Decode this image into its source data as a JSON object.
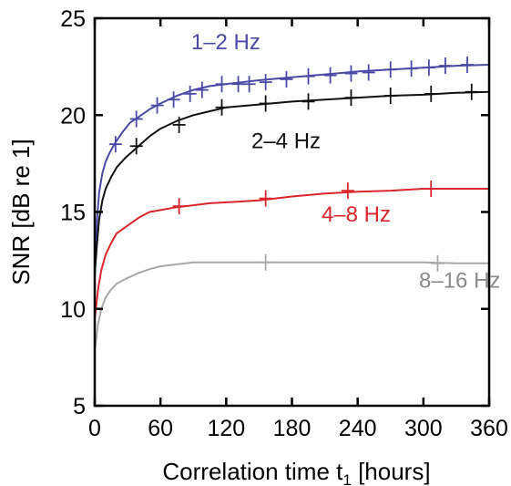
{
  "chart_data": {
    "type": "line",
    "xlabel": "Correlation time t",
    "xlabel_subscript": "1",
    "xlabel_unit": "[hours]",
    "ylabel": "SNR [dB re 1]",
    "xlim": [
      0,
      360
    ],
    "ylim": [
      5,
      25
    ],
    "xticks": [
      0,
      60,
      120,
      180,
      240,
      300,
      360
    ],
    "yticks": [
      5,
      10,
      15,
      20,
      25
    ],
    "grid": false,
    "series": [
      {
        "name": "1–2 Hz",
        "color": "#4a4aa6",
        "x": [
          0,
          2,
          4,
          7,
          10,
          14,
          19,
          25,
          32,
          40,
          50,
          60,
          75,
          90,
          105,
          120,
          150,
          180,
          210,
          240,
          270,
          300,
          330,
          360
        ],
        "y": [
          11.8,
          14.5,
          16.0,
          17.0,
          17.6,
          18.1,
          18.6,
          19.1,
          19.6,
          19.9,
          20.3,
          20.6,
          21.0,
          21.3,
          21.5,
          21.6,
          21.8,
          21.95,
          22.1,
          22.25,
          22.35,
          22.45,
          22.55,
          22.6
        ],
        "markers_x": [
          19,
          38,
          57,
          72,
          87,
          98,
          116,
          131,
          141,
          156,
          175,
          195,
          215,
          234,
          250,
          270,
          289,
          305,
          320,
          340
        ],
        "markers_y": [
          18.5,
          19.8,
          20.5,
          20.8,
          21.1,
          21.3,
          21.6,
          21.6,
          21.6,
          21.7,
          21.85,
          22.0,
          22.05,
          22.15,
          22.2,
          22.35,
          22.4,
          22.45,
          22.55,
          22.6
        ]
      },
      {
        "name": "2–4 Hz",
        "color": "#111111",
        "x": [
          0,
          2,
          4,
          7,
          10,
          15,
          20,
          28,
          38,
          50,
          60,
          75,
          90,
          105,
          120,
          150,
          180,
          210,
          240,
          270,
          300,
          330,
          360
        ],
        "y": [
          11.8,
          13.3,
          14.6,
          15.6,
          16.2,
          16.8,
          17.3,
          17.8,
          18.3,
          18.9,
          19.3,
          19.7,
          20.0,
          20.2,
          20.4,
          20.55,
          20.7,
          20.8,
          20.9,
          21.0,
          21.05,
          21.15,
          21.2
        ],
        "markers_x": [
          38,
          77,
          116,
          156,
          195,
          234,
          270,
          307,
          344
        ],
        "markers_y": [
          18.4,
          19.5,
          20.4,
          20.6,
          20.7,
          20.9,
          21.0,
          21.1,
          21.2
        ]
      },
      {
        "name": "4–8 Hz",
        "color": "#d8262c",
        "x": [
          0,
          3,
          6,
          10,
          15,
          20,
          30,
          40,
          50,
          60,
          75,
          90,
          105,
          120,
          150,
          180,
          210,
          240,
          270,
          300,
          330,
          360
        ],
        "y": [
          9.5,
          11.0,
          12.0,
          12.8,
          13.4,
          13.9,
          14.3,
          14.7,
          15.0,
          15.1,
          15.25,
          15.35,
          15.45,
          15.5,
          15.6,
          15.8,
          15.95,
          16.05,
          16.1,
          16.2,
          16.2,
          16.2
        ],
        "markers_x": [
          77,
          156,
          231,
          307
        ],
        "markers_y": [
          15.3,
          15.7,
          16.1,
          16.2
        ]
      },
      {
        "name": "8–16 Hz",
        "color": "#a8a8a8",
        "x": [
          0,
          3,
          6,
          10,
          15,
          20,
          30,
          40,
          50,
          60,
          75,
          90,
          105,
          120,
          150,
          180,
          210,
          240,
          270,
          300,
          330,
          360
        ],
        "y": [
          7.8,
          9.2,
          10.0,
          10.6,
          11.0,
          11.3,
          11.6,
          11.85,
          12.05,
          12.2,
          12.3,
          12.4,
          12.4,
          12.4,
          12.4,
          12.4,
          12.4,
          12.4,
          12.4,
          12.4,
          12.35,
          12.35
        ],
        "markers_x": [
          156,
          313
        ],
        "markers_y": [
          12.4,
          12.35
        ]
      }
    ],
    "labels": [
      {
        "text": "1–2 Hz",
        "color": "#4a4aa6",
        "x": 88,
        "y": 23.4
      },
      {
        "text": "2–4 Hz",
        "color": "#111111",
        "x": 143,
        "y": 18.3
      },
      {
        "text": "4–8 Hz",
        "color": "#d8262c",
        "x": 207,
        "y": 14.5
      },
      {
        "text": "8–16 Hz",
        "color": "#8a8a8a",
        "x": 296,
        "y": 11.1
      }
    ]
  }
}
